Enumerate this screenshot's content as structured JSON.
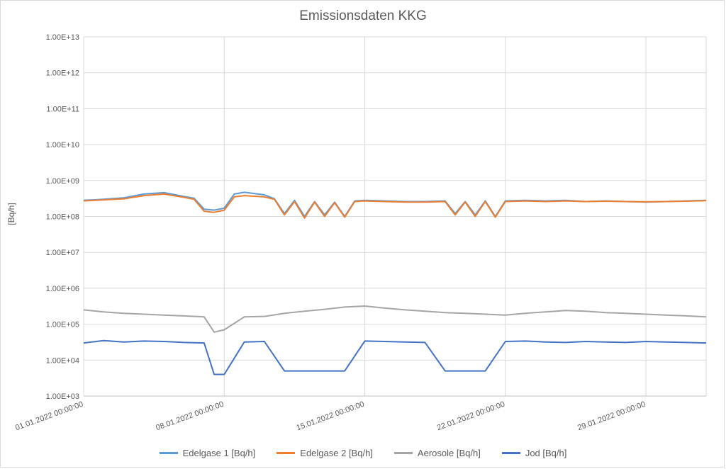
{
  "chart_data": {
    "type": "line",
    "title": "Emissionsdaten KKG",
    "ylabel": "[Bq/h]",
    "xlabel": "",
    "yscale": "log",
    "ylim": [
      1000,
      10000000000000
    ],
    "y_ticks": [
      "1.00E+03",
      "1.00E+04",
      "1.00E+05",
      "1.00E+06",
      "1.00E+07",
      "1.00E+08",
      "1.00E+09",
      "1.00E+10",
      "1.00E+11",
      "1.00E+12",
      "1.00E+13"
    ],
    "x_tick_labels": [
      "01.01.2022 00:00:00",
      "08.01.2022 00:00:00",
      "15.01.2022 00:00:00",
      "22.01.2022 00:00:00",
      "29.01.2022 00:00:00"
    ],
    "xlim": [
      "2022-01-01",
      "2022-02-01"
    ],
    "grid": true,
    "legend_position": "bottom",
    "series": [
      {
        "name": "Edelgase 1 [Bq/h]",
        "color": "#5b9bd5",
        "x": [
          "2022-01-01",
          "2022-01-02",
          "2022-01-03",
          "2022-01-04",
          "2022-01-05",
          "2022-01-06",
          "2022-01-06T12",
          "2022-01-07",
          "2022-01-07T12",
          "2022-01-08",
          "2022-01-08T12",
          "2022-01-09",
          "2022-01-10",
          "2022-01-10T12",
          "2022-01-11",
          "2022-01-11T12",
          "2022-01-12",
          "2022-01-12T12",
          "2022-01-13",
          "2022-01-13T12",
          "2022-01-14",
          "2022-01-14T12",
          "2022-01-15",
          "2022-01-16",
          "2022-01-17",
          "2022-01-18",
          "2022-01-19",
          "2022-01-19T12",
          "2022-01-20",
          "2022-01-20T12",
          "2022-01-21",
          "2022-01-21T12",
          "2022-01-22",
          "2022-01-23",
          "2022-01-24",
          "2022-01-25",
          "2022-01-26",
          "2022-01-27",
          "2022-01-28",
          "2022-01-29",
          "2022-01-30",
          "2022-01-31",
          "2022-02-01"
        ],
        "values": [
          280000000,
          300000000,
          330000000,
          420000000,
          460000000,
          360000000,
          320000000,
          160000000,
          150000000,
          170000000,
          420000000,
          470000000,
          400000000,
          310000000,
          120000000,
          280000000,
          100000000,
          260000000,
          110000000,
          250000000,
          100000000,
          270000000,
          280000000,
          270000000,
          260000000,
          260000000,
          270000000,
          120000000,
          260000000,
          110000000,
          270000000,
          100000000,
          270000000,
          280000000,
          270000000,
          280000000,
          260000000,
          270000000,
          260000000,
          250000000,
          260000000,
          270000000,
          280000000
        ]
      },
      {
        "name": "Edelgase 2 [Bq/h]",
        "color": "#ed7d31",
        "x": [
          "2022-01-01",
          "2022-01-02",
          "2022-01-03",
          "2022-01-04",
          "2022-01-05",
          "2022-01-06",
          "2022-01-06T12",
          "2022-01-07",
          "2022-01-07T12",
          "2022-01-08",
          "2022-01-08T12",
          "2022-01-09",
          "2022-01-10",
          "2022-01-10T12",
          "2022-01-11",
          "2022-01-11T12",
          "2022-01-12",
          "2022-01-12T12",
          "2022-01-13",
          "2022-01-13T12",
          "2022-01-14",
          "2022-01-14T12",
          "2022-01-15",
          "2022-01-16",
          "2022-01-17",
          "2022-01-18",
          "2022-01-19",
          "2022-01-19T12",
          "2022-01-20",
          "2022-01-20T12",
          "2022-01-21",
          "2022-01-21T12",
          "2022-01-22",
          "2022-01-23",
          "2022-01-24",
          "2022-01-25",
          "2022-01-26",
          "2022-01-27",
          "2022-01-28",
          "2022-01-29",
          "2022-01-30",
          "2022-01-31",
          "2022-02-01"
        ],
        "values": [
          270000000,
          290000000,
          310000000,
          380000000,
          420000000,
          340000000,
          300000000,
          140000000,
          130000000,
          150000000,
          350000000,
          380000000,
          350000000,
          300000000,
          110000000,
          260000000,
          90000000,
          250000000,
          100000000,
          240000000,
          95000000,
          260000000,
          270000000,
          260000000,
          250000000,
          250000000,
          260000000,
          110000000,
          250000000,
          100000000,
          260000000,
          95000000,
          260000000,
          270000000,
          260000000,
          270000000,
          260000000,
          265000000,
          260000000,
          255000000,
          260000000,
          265000000,
          275000000
        ]
      },
      {
        "name": "Aerosole [Bq/h]",
        "color": "#a5a5a5",
        "x": [
          "2022-01-01",
          "2022-01-02",
          "2022-01-03",
          "2022-01-04",
          "2022-01-05",
          "2022-01-06",
          "2022-01-07",
          "2022-01-07T12",
          "2022-01-08",
          "2022-01-09",
          "2022-01-10",
          "2022-01-11",
          "2022-01-12",
          "2022-01-13",
          "2022-01-14",
          "2022-01-15",
          "2022-01-16",
          "2022-01-17",
          "2022-01-18",
          "2022-01-19",
          "2022-01-20",
          "2022-01-21",
          "2022-01-22",
          "2022-01-23",
          "2022-01-24",
          "2022-01-25",
          "2022-01-26",
          "2022-01-27",
          "2022-01-28",
          "2022-01-29",
          "2022-01-30",
          "2022-01-31",
          "2022-02-01"
        ],
        "values": [
          250000,
          220000,
          200000,
          190000,
          180000,
          170000,
          160000,
          60000,
          70000,
          160000,
          165000,
          200000,
          230000,
          260000,
          300000,
          320000,
          280000,
          250000,
          230000,
          210000,
          200000,
          190000,
          180000,
          200000,
          220000,
          240000,
          230000,
          210000,
          200000,
          190000,
          180000,
          170000,
          160000
        ]
      },
      {
        "name": "Jod [Bq/h]",
        "color": "#4472c4",
        "x": [
          "2022-01-01",
          "2022-01-02",
          "2022-01-03",
          "2022-01-04",
          "2022-01-05",
          "2022-01-06",
          "2022-01-07",
          "2022-01-07T12",
          "2022-01-08",
          "2022-01-09",
          "2022-01-10",
          "2022-01-11",
          "2022-01-12",
          "2022-01-13",
          "2022-01-14",
          "2022-01-15",
          "2022-01-16",
          "2022-01-17",
          "2022-01-18",
          "2022-01-19",
          "2022-01-20",
          "2022-01-21",
          "2022-01-22",
          "2022-01-23",
          "2022-01-24",
          "2022-01-25",
          "2022-01-26",
          "2022-01-27",
          "2022-01-28",
          "2022-01-29",
          "2022-01-30",
          "2022-01-31",
          "2022-02-01"
        ],
        "values": [
          30000,
          35000,
          32000,
          34000,
          33000,
          31000,
          30000,
          4000,
          4000,
          32000,
          33000,
          5000,
          5000,
          5000,
          5000,
          34000,
          33000,
          32000,
          31000,
          5000,
          5000,
          5000,
          33000,
          34000,
          32000,
          31000,
          33000,
          32000,
          31000,
          33000,
          32000,
          31000,
          30000
        ]
      }
    ]
  }
}
